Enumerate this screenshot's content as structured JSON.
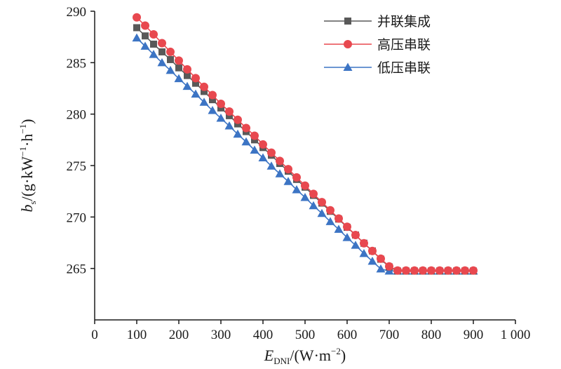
{
  "chart_data": {
    "type": "line",
    "title": "",
    "xlabel": {
      "main": "E",
      "sub": "DNI",
      "rest": "/(W·m",
      "sup": "−2",
      "close": ")"
    },
    "ylabel": {
      "main": "b",
      "sub": "s",
      "rest1": "/(g·kW",
      "sup1": "−1",
      "rest2": "·h",
      "sup2": "−1",
      "close": ")"
    },
    "xlim": [
      0,
      1000
    ],
    "ylim": [
      260,
      290
    ],
    "x_ticks": [
      0,
      100,
      200,
      300,
      400,
      500,
      600,
      700,
      800,
      900,
      1000
    ],
    "x_tick_labels": [
      "0",
      "100",
      "200",
      "300",
      "400",
      "500",
      "600",
      "700",
      "800",
      "900",
      "1 000"
    ],
    "y_ticks": [
      265,
      270,
      275,
      280,
      285,
      290
    ],
    "y_tick_labels": [
      "265",
      "270",
      "275",
      "280",
      "285",
      "290"
    ],
    "grid": false,
    "legend_position": "top-right",
    "x": [
      100,
      120,
      140,
      160,
      180,
      200,
      220,
      240,
      260,
      280,
      300,
      320,
      340,
      360,
      380,
      400,
      420,
      440,
      460,
      480,
      500,
      520,
      540,
      560,
      580,
      600,
      620,
      640,
      660,
      680,
      700,
      720,
      740,
      760,
      780,
      800,
      820,
      840,
      860,
      880,
      900
    ],
    "series": [
      {
        "name": "并联集成",
        "color": "#595959",
        "marker": "square",
        "values": [
          288.4,
          287.6,
          286.8,
          286.05,
          285.3,
          284.5,
          283.75,
          283.0,
          282.2,
          281.4,
          280.6,
          279.85,
          279.05,
          278.3,
          277.5,
          276.75,
          276.0,
          275.2,
          274.45,
          273.65,
          272.9,
          272.1,
          271.35,
          270.55,
          269.8,
          269.0,
          268.25,
          267.45,
          266.7,
          265.9,
          265.15,
          264.75,
          264.75,
          264.75,
          264.75,
          264.75,
          264.75,
          264.75,
          264.75,
          264.75,
          264.75
        ]
      },
      {
        "name": "高压串联",
        "color": "#e8484f",
        "marker": "circle",
        "values": [
          289.4,
          288.6,
          287.75,
          286.9,
          286.05,
          285.2,
          284.35,
          283.5,
          282.65,
          281.85,
          281.0,
          280.25,
          279.45,
          278.65,
          277.9,
          277.05,
          276.25,
          275.45,
          274.65,
          273.85,
          273.05,
          272.25,
          271.45,
          270.65,
          269.85,
          269.05,
          268.25,
          267.45,
          266.7,
          265.95,
          265.2,
          264.8,
          264.8,
          264.8,
          264.8,
          264.8,
          264.8,
          264.8,
          264.8,
          264.8,
          264.8
        ]
      },
      {
        "name": "低压串联",
        "color": "#3c74c4",
        "marker": "triangle",
        "values": [
          287.4,
          286.6,
          285.8,
          285.0,
          284.25,
          283.45,
          282.7,
          281.95,
          281.15,
          280.35,
          279.6,
          278.85,
          278.05,
          277.3,
          276.5,
          275.75,
          274.95,
          274.2,
          273.45,
          272.65,
          271.9,
          271.1,
          270.35,
          269.55,
          268.8,
          268.0,
          267.25,
          266.45,
          265.7,
          264.95,
          264.75,
          264.75,
          264.75,
          264.75,
          264.75,
          264.75,
          264.75,
          264.75,
          264.75,
          264.75,
          264.75
        ]
      }
    ]
  }
}
